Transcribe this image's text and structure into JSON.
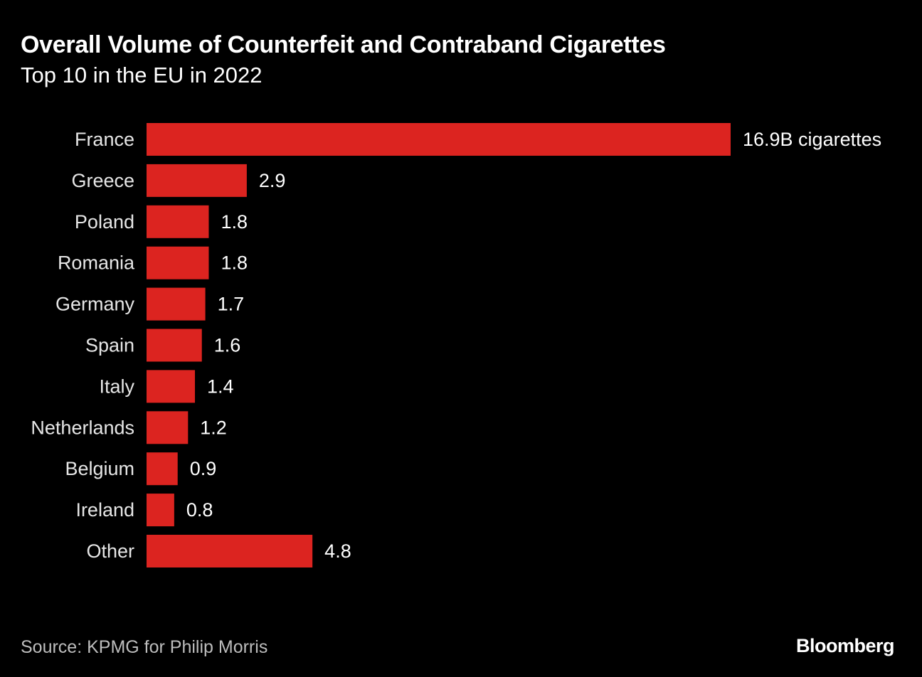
{
  "chart_data": {
    "type": "bar",
    "orientation": "horizontal",
    "title": "Overall Volume of Counterfeit and Contraband Cigarettes",
    "subtitle": "Top 10 in the EU in 2022",
    "unit": "B cigarettes",
    "categories": [
      "France",
      "Greece",
      "Poland",
      "Romania",
      "Germany",
      "Spain",
      "Italy",
      "Netherlands",
      "Belgium",
      "Ireland",
      "Other"
    ],
    "values": [
      16.9,
      2.9,
      1.8,
      1.8,
      1.7,
      1.6,
      1.4,
      1.2,
      0.9,
      0.8,
      4.8
    ],
    "value_labels": [
      "16.9B cigarettes",
      "2.9",
      "1.8",
      "1.8",
      "1.7",
      "1.6",
      "1.4",
      "1.2",
      "0.9",
      "0.8",
      "4.8"
    ],
    "xlim": [
      0,
      16.9
    ],
    "grid": false,
    "legend": "none",
    "bar_color": "#dc2420",
    "source": "Source: KPMG for Philip Morris",
    "brand": "Bloomberg"
  }
}
